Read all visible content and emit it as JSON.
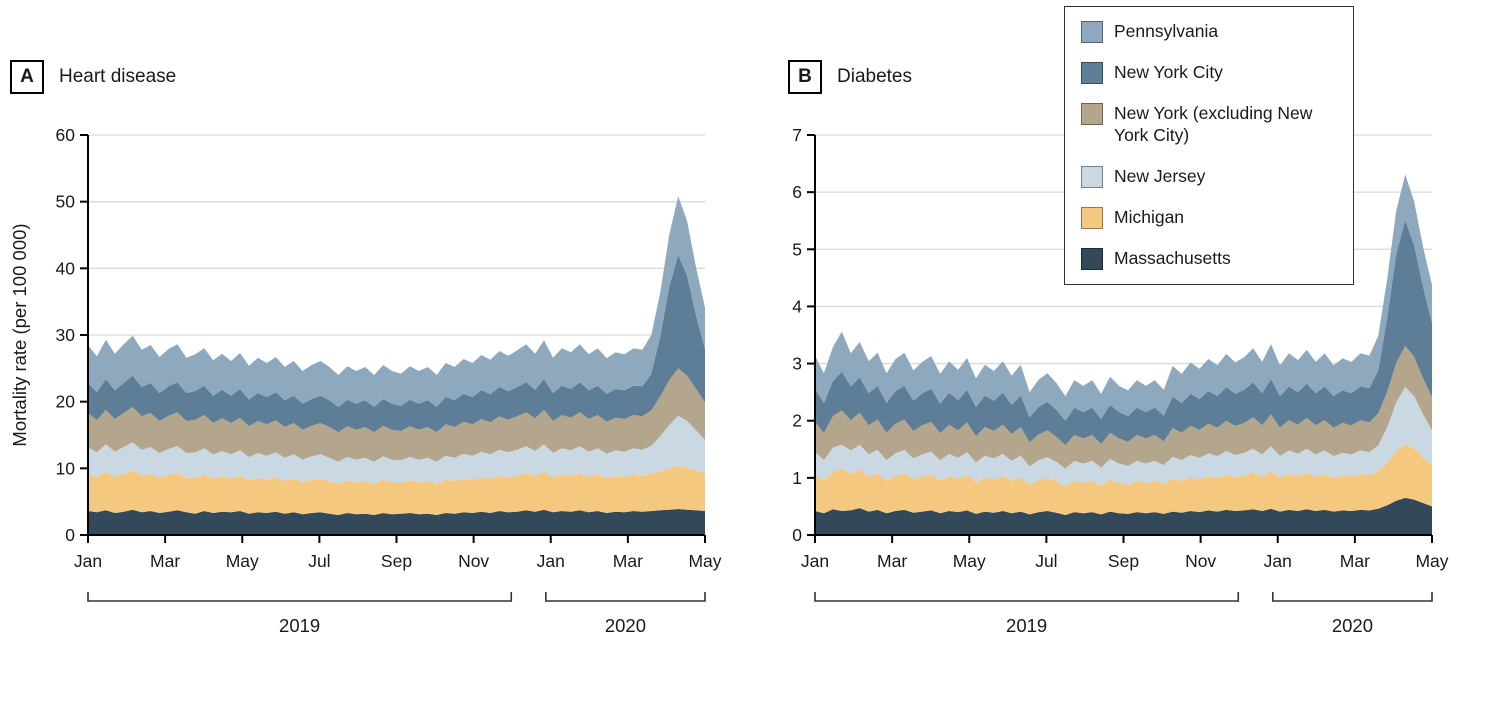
{
  "legend": {
    "items": [
      {
        "label": "Pennsylvania",
        "color": "#8ea9be"
      },
      {
        "label": "New York City",
        "color": "#5d7e96"
      },
      {
        "label": "New York (excluding New York City)",
        "color": "#b3a68c"
      },
      {
        "label": "New Jersey",
        "color": "#c9d8e3"
      },
      {
        "label": "Michigan",
        "color": "#f5c880"
      },
      {
        "label": "Massachusetts",
        "color": "#33495a"
      }
    ]
  },
  "chart_data": [
    {
      "type": "area",
      "stacked": true,
      "panel_label": "A",
      "title": "Heart disease",
      "ylabel": "Mortality rate (per 100 000)",
      "ylim": [
        0,
        60
      ],
      "yticks": [
        0,
        10,
        20,
        30,
        40,
        50,
        60
      ],
      "xticks": [
        "Jan",
        "Mar",
        "May",
        "Jul",
        "Sep",
        "Nov",
        "Jan",
        "Mar",
        "May"
      ],
      "x_unit": "week (Jan 2019 - May 2020)",
      "grid": true,
      "year_groups": [
        {
          "label": "2019",
          "from": 0.0,
          "to": 0.686
        },
        {
          "label": "2020",
          "from": 0.742,
          "to": 1.0
        }
      ],
      "series": [
        {
          "name": "Massachusetts",
          "color": "#33495a",
          "values": [
            3.6,
            3.4,
            3.7,
            3.3,
            3.5,
            3.8,
            3.4,
            3.6,
            3.3,
            3.5,
            3.7,
            3.4,
            3.2,
            3.6,
            3.3,
            3.5,
            3.4,
            3.6,
            3.2,
            3.4,
            3.3,
            3.5,
            3.2,
            3.4,
            3.1,
            3.3,
            3.4,
            3.2,
            3.0,
            3.3,
            3.1,
            3.2,
            3.0,
            3.3,
            3.1,
            3.2,
            3.3,
            3.1,
            3.2,
            3.0,
            3.3,
            3.2,
            3.4,
            3.3,
            3.5,
            3.3,
            3.6,
            3.4,
            3.5,
            3.7,
            3.5,
            3.8,
            3.4,
            3.6,
            3.5,
            3.7,
            3.4,
            3.6,
            3.3,
            3.5,
            3.4,
            3.6,
            3.5,
            3.6,
            3.7,
            3.8,
            3.9,
            3.8,
            3.7,
            3.6
          ]
        },
        {
          "name": "Michigan",
          "color": "#f5c880",
          "values": [
            5.6,
            5.3,
            5.8,
            5.4,
            5.7,
            5.9,
            5.5,
            5.6,
            5.3,
            5.5,
            5.6,
            5.2,
            5.4,
            5.5,
            5.2,
            5.3,
            5.1,
            5.3,
            5.0,
            5.2,
            5.0,
            5.2,
            4.9,
            5.1,
            4.8,
            5.0,
            5.1,
            4.9,
            4.7,
            4.9,
            4.8,
            4.9,
            4.7,
            5.0,
            4.8,
            4.7,
            4.9,
            4.8,
            4.9,
            4.7,
            5.0,
            4.9,
            5.1,
            5.0,
            5.2,
            5.1,
            5.3,
            5.2,
            5.4,
            5.6,
            5.3,
            5.7,
            5.2,
            5.5,
            5.4,
            5.6,
            5.3,
            5.5,
            5.2,
            5.4,
            5.3,
            5.5,
            5.4,
            5.6,
            5.9,
            6.2,
            6.5,
            6.3,
            6.0,
            5.7
          ]
        },
        {
          "name": "New Jersey",
          "color": "#c9d8e3",
          "values": [
            4.0,
            3.7,
            4.1,
            3.8,
            4.0,
            4.2,
            3.9,
            4.0,
            3.7,
            3.9,
            4.0,
            3.7,
            3.8,
            3.9,
            3.6,
            3.8,
            3.6,
            3.8,
            3.5,
            3.7,
            3.6,
            3.7,
            3.5,
            3.6,
            3.4,
            3.5,
            3.6,
            3.5,
            3.3,
            3.5,
            3.4,
            3.5,
            3.3,
            3.5,
            3.4,
            3.3,
            3.5,
            3.4,
            3.5,
            3.3,
            3.6,
            3.5,
            3.7,
            3.6,
            3.8,
            3.7,
            3.9,
            3.8,
            3.9,
            4.0,
            3.8,
            4.1,
            3.7,
            3.9,
            3.8,
            4.0,
            3.8,
            3.9,
            3.7,
            3.8,
            3.8,
            3.9,
            3.9,
            4.2,
            5.2,
            6.5,
            7.5,
            7.0,
            6.0,
            5.0
          ]
        },
        {
          "name": "New York (excluding New York City)",
          "color": "#b3a68c",
          "values": [
            5.1,
            4.8,
            5.2,
            4.9,
            5.1,
            5.3,
            5.0,
            5.1,
            4.8,
            5.0,
            5.1,
            4.8,
            4.9,
            5.0,
            4.7,
            4.9,
            4.7,
            4.9,
            4.6,
            4.8,
            4.7,
            4.8,
            4.6,
            4.7,
            4.5,
            4.6,
            4.7,
            4.6,
            4.4,
            4.6,
            4.5,
            4.6,
            4.4,
            4.6,
            4.5,
            4.4,
            4.6,
            4.5,
            4.6,
            4.4,
            4.7,
            4.6,
            4.8,
            4.7,
            4.9,
            4.8,
            5.0,
            4.9,
            5.0,
            5.1,
            4.9,
            5.2,
            4.8,
            5.0,
            4.9,
            5.1,
            4.9,
            5.0,
            4.8,
            4.9,
            4.9,
            5.0,
            5.0,
            5.3,
            6.0,
            6.7,
            7.1,
            6.8,
            6.2,
            5.6
          ]
        },
        {
          "name": "New York City",
          "color": "#5d7e96",
          "values": [
            4.5,
            4.2,
            4.6,
            4.3,
            4.5,
            4.7,
            4.4,
            4.5,
            4.2,
            4.4,
            4.5,
            4.2,
            4.3,
            4.4,
            4.1,
            4.3,
            4.1,
            4.3,
            4.0,
            4.2,
            4.1,
            4.2,
            4.0,
            4.1,
            3.9,
            4.0,
            4.1,
            4.0,
            3.8,
            4.0,
            3.9,
            4.0,
            3.8,
            4.0,
            3.9,
            3.8,
            4.0,
            3.9,
            4.0,
            3.8,
            4.1,
            4.0,
            4.2,
            4.1,
            4.3,
            4.2,
            4.4,
            4.3,
            4.4,
            4.5,
            4.3,
            4.6,
            4.2,
            4.4,
            4.3,
            4.5,
            4.3,
            4.4,
            4.2,
            4.3,
            4.3,
            4.4,
            4.5,
            5.5,
            9.0,
            14.0,
            17.0,
            15.0,
            11.0,
            8.0
          ]
        },
        {
          "name": "Pennsylvania",
          "color": "#8ea9be",
          "values": [
            5.7,
            5.4,
            5.9,
            5.5,
            5.8,
            6.0,
            5.6,
            5.7,
            5.4,
            5.6,
            5.7,
            5.3,
            5.5,
            5.6,
            5.3,
            5.4,
            5.2,
            5.4,
            5.1,
            5.3,
            5.1,
            5.3,
            5.0,
            5.2,
            4.9,
            5.1,
            5.2,
            5.0,
            4.8,
            5.0,
            4.9,
            5.0,
            4.8,
            5.1,
            4.9,
            4.8,
            5.0,
            4.9,
            5.0,
            4.8,
            5.1,
            5.0,
            5.2,
            5.1,
            5.3,
            5.2,
            5.4,
            5.3,
            5.5,
            5.7,
            5.4,
            5.8,
            5.3,
            5.6,
            5.5,
            5.7,
            5.4,
            5.6,
            5.3,
            5.5,
            5.4,
            5.6,
            5.5,
            5.8,
            6.6,
            7.8,
            8.8,
            8.2,
            7.2,
            6.2
          ]
        }
      ]
    },
    {
      "type": "area",
      "stacked": true,
      "panel_label": "B",
      "title": "Diabetes",
      "ylabel": "",
      "ylim": [
        0,
        7
      ],
      "yticks": [
        0,
        1,
        2,
        3,
        4,
        5,
        6,
        7
      ],
      "xticks": [
        "Jan",
        "Mar",
        "May",
        "Jul",
        "Sep",
        "Nov",
        "Jan",
        "Mar",
        "May"
      ],
      "x_unit": "week (Jan 2019 - May 2020)",
      "grid": true,
      "year_groups": [
        {
          "label": "2019",
          "from": 0.0,
          "to": 0.686
        },
        {
          "label": "2020",
          "from": 0.742,
          "to": 1.0
        }
      ],
      "series": [
        {
          "name": "Massachusetts",
          "color": "#33495a",
          "values": [
            0.42,
            0.38,
            0.45,
            0.42,
            0.43,
            0.47,
            0.41,
            0.44,
            0.38,
            0.42,
            0.44,
            0.39,
            0.41,
            0.43,
            0.38,
            0.42,
            0.4,
            0.43,
            0.37,
            0.41,
            0.39,
            0.42,
            0.38,
            0.41,
            0.36,
            0.4,
            0.42,
            0.39,
            0.35,
            0.4,
            0.38,
            0.4,
            0.36,
            0.41,
            0.38,
            0.37,
            0.4,
            0.38,
            0.4,
            0.37,
            0.41,
            0.39,
            0.42,
            0.4,
            0.43,
            0.41,
            0.44,
            0.42,
            0.43,
            0.45,
            0.42,
            0.46,
            0.41,
            0.44,
            0.42,
            0.45,
            0.42,
            0.44,
            0.41,
            0.43,
            0.42,
            0.44,
            0.43,
            0.46,
            0.52,
            0.6,
            0.65,
            0.62,
            0.56,
            0.5
          ]
        },
        {
          "name": "Michigan",
          "color": "#f5c880",
          "values": [
            0.63,
            0.57,
            0.66,
            0.74,
            0.64,
            0.68,
            0.61,
            0.64,
            0.57,
            0.62,
            0.64,
            0.58,
            0.61,
            0.63,
            0.57,
            0.61,
            0.58,
            0.62,
            0.55,
            0.6,
            0.58,
            0.61,
            0.56,
            0.6,
            0.52,
            0.56,
            0.58,
            0.55,
            0.5,
            0.55,
            0.53,
            0.55,
            0.5,
            0.56,
            0.53,
            0.51,
            0.55,
            0.53,
            0.55,
            0.52,
            0.58,
            0.55,
            0.59,
            0.57,
            0.6,
            0.58,
            0.62,
            0.59,
            0.61,
            0.64,
            0.6,
            0.66,
            0.59,
            0.63,
            0.61,
            0.64,
            0.6,
            0.63,
            0.59,
            0.61,
            0.6,
            0.63,
            0.62,
            0.66,
            0.75,
            0.87,
            0.94,
            0.89,
            0.8,
            0.71
          ]
        },
        {
          "name": "New Jersey",
          "color": "#c9d8e3",
          "values": [
            0.4,
            0.36,
            0.42,
            0.42,
            0.41,
            0.43,
            0.39,
            0.41,
            0.36,
            0.39,
            0.41,
            0.37,
            0.39,
            0.4,
            0.36,
            0.39,
            0.37,
            0.4,
            0.35,
            0.38,
            0.37,
            0.39,
            0.36,
            0.38,
            0.32,
            0.35,
            0.36,
            0.34,
            0.31,
            0.35,
            0.34,
            0.35,
            0.32,
            0.36,
            0.34,
            0.33,
            0.35,
            0.34,
            0.35,
            0.33,
            0.38,
            0.37,
            0.39,
            0.38,
            0.4,
            0.39,
            0.41,
            0.39,
            0.4,
            0.42,
            0.39,
            0.43,
            0.38,
            0.41,
            0.39,
            0.42,
            0.39,
            0.41,
            0.38,
            0.4,
            0.39,
            0.41,
            0.4,
            0.45,
            0.62,
            0.85,
            1.0,
            0.92,
            0.75,
            0.62
          ]
        },
        {
          "name": "New York (excluding New York City)",
          "color": "#b3a68c",
          "values": [
            0.53,
            0.48,
            0.55,
            0.6,
            0.53,
            0.56,
            0.51,
            0.53,
            0.48,
            0.52,
            0.53,
            0.48,
            0.51,
            0.52,
            0.47,
            0.51,
            0.48,
            0.52,
            0.46,
            0.5,
            0.48,
            0.51,
            0.47,
            0.5,
            0.42,
            0.45,
            0.47,
            0.44,
            0.41,
            0.45,
            0.44,
            0.45,
            0.41,
            0.46,
            0.44,
            0.42,
            0.45,
            0.44,
            0.45,
            0.42,
            0.5,
            0.48,
            0.51,
            0.49,
            0.52,
            0.5,
            0.53,
            0.51,
            0.52,
            0.55,
            0.51,
            0.56,
            0.5,
            0.53,
            0.51,
            0.54,
            0.51,
            0.53,
            0.5,
            0.52,
            0.51,
            0.53,
            0.52,
            0.56,
            0.62,
            0.69,
            0.72,
            0.69,
            0.63,
            0.58
          ]
        },
        {
          "name": "New York City",
          "color": "#5d7e96",
          "values": [
            0.58,
            0.52,
            0.61,
            0.68,
            0.59,
            0.62,
            0.56,
            0.59,
            0.52,
            0.57,
            0.59,
            0.53,
            0.56,
            0.58,
            0.52,
            0.56,
            0.53,
            0.57,
            0.51,
            0.55,
            0.53,
            0.56,
            0.51,
            0.55,
            0.44,
            0.48,
            0.5,
            0.47,
            0.43,
            0.48,
            0.46,
            0.48,
            0.44,
            0.49,
            0.46,
            0.45,
            0.48,
            0.46,
            0.48,
            0.45,
            0.55,
            0.52,
            0.56,
            0.54,
            0.57,
            0.55,
            0.59,
            0.56,
            0.58,
            0.61,
            0.56,
            0.62,
            0.55,
            0.59,
            0.57,
            0.6,
            0.56,
            0.59,
            0.55,
            0.57,
            0.56,
            0.59,
            0.6,
            0.75,
            1.3,
            1.9,
            2.2,
            1.95,
            1.6,
            1.3
          ]
        },
        {
          "name": "Pennsylvania",
          "color": "#8ea9be",
          "values": [
            0.58,
            0.52,
            0.6,
            0.7,
            0.58,
            0.62,
            0.56,
            0.58,
            0.52,
            0.56,
            0.58,
            0.53,
            0.55,
            0.57,
            0.52,
            0.55,
            0.53,
            0.56,
            0.5,
            0.54,
            0.52,
            0.55,
            0.51,
            0.54,
            0.44,
            0.48,
            0.5,
            0.47,
            0.43,
            0.48,
            0.46,
            0.48,
            0.44,
            0.49,
            0.46,
            0.45,
            0.48,
            0.46,
            0.48,
            0.45,
            0.54,
            0.51,
            0.55,
            0.53,
            0.56,
            0.54,
            0.58,
            0.55,
            0.57,
            0.6,
            0.55,
            0.61,
            0.54,
            0.58,
            0.56,
            0.59,
            0.55,
            0.58,
            0.54,
            0.56,
            0.55,
            0.58,
            0.57,
            0.61,
            0.68,
            0.76,
            0.8,
            0.77,
            0.7,
            0.66
          ]
        }
      ]
    }
  ]
}
